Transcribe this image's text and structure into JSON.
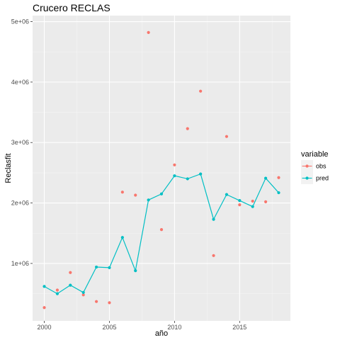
{
  "chart_data": {
    "type": "line",
    "title": "Crucero RECLAS",
    "xlabel": "año",
    "ylabel": "Reclasfit",
    "xlim": [
      1999.1,
      2018.9
    ],
    "ylim": [
      50000,
      5100000
    ],
    "x_ticks": [
      2000,
      2005,
      2010,
      2015
    ],
    "x_tick_labels": [
      "2000",
      "2005",
      "2010",
      "2015"
    ],
    "y_ticks": [
      1000000,
      2000000,
      3000000,
      4000000,
      5000000
    ],
    "y_tick_labels": [
      "1e+06",
      "2e+06",
      "3e+06",
      "4e+06",
      "5e+06"
    ],
    "grid": true,
    "legend": {
      "title": "variable",
      "position": "right",
      "entries": [
        {
          "label": "obs",
          "color": "#F8766D"
        },
        {
          "label": "pred",
          "color": "#00BFC4"
        }
      ]
    },
    "series": [
      {
        "name": "obs",
        "style": "points",
        "color": "#F8766D",
        "x": [
          2000,
          2001,
          2002,
          2003,
          2004,
          2005,
          2006,
          2007,
          2008,
          2009,
          2010,
          2011,
          2012,
          2013,
          2014,
          2015,
          2016,
          2017,
          2018
        ],
        "values": [
          270000,
          560000,
          850000,
          480000,
          370000,
          350000,
          2180000,
          2130000,
          4820000,
          1560000,
          2630000,
          3230000,
          3850000,
          1130000,
          3100000,
          1970000,
          2030000,
          2020000,
          2420000
        ]
      },
      {
        "name": "pred",
        "style": "line+points",
        "color": "#00BFC4",
        "x": [
          2000,
          2001,
          2002,
          2003,
          2004,
          2005,
          2006,
          2007,
          2008,
          2009,
          2010,
          2011,
          2012,
          2013,
          2014,
          2015,
          2016,
          2017,
          2018
        ],
        "values": [
          620000,
          500000,
          640000,
          520000,
          940000,
          930000,
          1430000,
          880000,
          2050000,
          2150000,
          2450000,
          2400000,
          2480000,
          1730000,
          2140000,
          2040000,
          1940000,
          2410000,
          2170000
        ]
      }
    ]
  }
}
